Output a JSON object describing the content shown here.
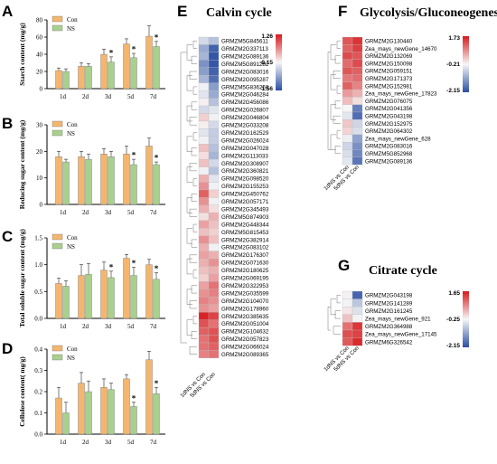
{
  "colors": {
    "con": "#f4b66f",
    "ns": "#a9d08e",
    "heat_high": "#d7191c",
    "heat_mid": "#f7f7f7",
    "heat_low": "#2b4fa5"
  },
  "legend": {
    "con": "Con",
    "ns": "NS"
  },
  "chart_data": [
    {
      "type": "bar",
      "panel": "A",
      "ylabel": "Starch content (mg/g)",
      "categories": [
        "1d",
        "2d",
        "3d",
        "5d",
        "7d"
      ],
      "ylim": [
        0,
        80
      ],
      "yticks": [
        0,
        20,
        40,
        60,
        80
      ],
      "series": [
        {
          "name": "Con",
          "values": [
            21,
            26,
            40,
            52,
            61
          ],
          "errors": [
            3,
            4,
            6,
            6,
            12
          ]
        },
        {
          "name": "NS",
          "values": [
            20,
            26,
            31,
            36,
            49
          ],
          "errors": [
            3,
            3,
            6,
            5,
            6
          ]
        }
      ],
      "significance": [
        false,
        false,
        true,
        true,
        true
      ]
    },
    {
      "type": "bar",
      "panel": "B",
      "ylabel": "Reducing sugar content (mg/g)",
      "categories": [
        "1d",
        "2d",
        "3d",
        "5d",
        "7d"
      ],
      "ylim": [
        0,
        30
      ],
      "yticks": [
        0,
        10,
        20,
        30
      ],
      "series": [
        {
          "name": "Con",
          "values": [
            18,
            18,
            19,
            19,
            22
          ],
          "errors": [
            2,
            2,
            2,
            3,
            3
          ]
        },
        {
          "name": "NS",
          "values": [
            16,
            17,
            18,
            15,
            15
          ],
          "errors": [
            1,
            2,
            2,
            2,
            1
          ]
        }
      ],
      "significance": [
        false,
        false,
        false,
        true,
        true
      ]
    },
    {
      "type": "bar",
      "panel": "C",
      "ylabel": "Total soluble sugar content (mg/g)",
      "categories": [
        "1d",
        "2d",
        "3d",
        "5d",
        "7d"
      ],
      "ylim": [
        0,
        1.5
      ],
      "yticks": [
        0.0,
        0.5,
        1.0,
        1.5
      ],
      "series": [
        {
          "name": "Con",
          "values": [
            0.65,
            0.8,
            0.9,
            1.12,
            1.0
          ],
          "errors": [
            0.1,
            0.2,
            0.15,
            0.07,
            0.1
          ]
        },
        {
          "name": "NS",
          "values": [
            0.6,
            0.82,
            0.76,
            0.8,
            0.73
          ],
          "errors": [
            0.1,
            0.2,
            0.12,
            0.15,
            0.12
          ]
        }
      ],
      "significance": [
        false,
        false,
        true,
        true,
        true
      ]
    },
    {
      "type": "bar",
      "panel": "D",
      "ylabel": "Cellulose content( mg/g)",
      "categories": [
        "1d",
        "2d",
        "3d",
        "5d",
        "7d"
      ],
      "ylim": [
        0,
        0.4
      ],
      "yticks": [
        0.0,
        0.1,
        0.2,
        0.3,
        0.4
      ],
      "series": [
        {
          "name": "Con",
          "values": [
            0.17,
            0.24,
            0.22,
            0.26,
            0.35
          ],
          "errors": [
            0.05,
            0.05,
            0.04,
            0.02,
            0.04
          ]
        },
        {
          "name": "NS",
          "values": [
            0.1,
            0.2,
            0.21,
            0.13,
            0.19
          ],
          "errors": [
            0.05,
            0.05,
            0.03,
            0.02,
            0.03
          ]
        }
      ],
      "significance": [
        false,
        false,
        false,
        true,
        true
      ]
    },
    {
      "type": "heatmap",
      "panel": "E",
      "title": "Calvin cycle",
      "columns": [
        "1dNS vs Con",
        "5dNS vs Con"
      ],
      "scale": [
        -1.56,
        -0.15,
        1.26
      ],
      "rows": [
        "GRMZM5G845611",
        "GRMZM2G337113",
        "GRMZM2G089136",
        "GRMZM5G891282",
        "GRMZM2G083016",
        "GRMZM2G095287",
        "GRMZM5G836250",
        "GRMZM2G046284",
        "GRMZM2G456086",
        "GRMZM2G026807",
        "GRMZM2G046804",
        "GRMZM2G033208",
        "GRMZM2G162529",
        "GRMZM2G026024",
        "GRMZM2G047028",
        "GRMZM2G113033",
        "GRMZM2G308907",
        "GRMZM2G360821",
        "GRMZM2G098520",
        "GRMZM2G155253",
        "GRMZM2G450762",
        "GRMZM2G057171",
        "GRMZM2G345493",
        "GRMZM5G874903",
        "GRMZM2G448344",
        "GRMZM5G815453",
        "GRMZM2G382914",
        "GRMZM2G083102",
        "GRMZM2G176307",
        "GRMZM2G071630",
        "GRMZM2G180625",
        "GRMZM2G069195",
        "GRMZM2G322953",
        "GRMZM2G035599",
        "GRMZM2G104070",
        "GRMZM2G178960",
        "GRMZM2G385635",
        "GRMZM2G051004",
        "GRMZM2G104632",
        "GRMZM2G057823",
        "GRMZM2G066024",
        "GRMZM2G089365"
      ],
      "values": [
        [
          -0.4,
          -0.6
        ],
        [
          -0.8,
          -1.4
        ],
        [
          -0.7,
          -1.5
        ],
        [
          -1.0,
          -1.5
        ],
        [
          -0.9,
          -1.4
        ],
        [
          -0.7,
          -1.3
        ],
        [
          -0.2,
          -0.9
        ],
        [
          -0.3,
          -0.8
        ],
        [
          -0.1,
          -0.6
        ],
        [
          -0.4,
          -0.3
        ],
        [
          0.1,
          -0.2
        ],
        [
          -0.1,
          -0.4
        ],
        [
          -0.3,
          -0.5
        ],
        [
          -0.2,
          -0.5
        ],
        [
          0.2,
          -0.6
        ],
        [
          0.0,
          -0.7
        ],
        [
          0.2,
          -0.4
        ],
        [
          -0.2,
          -0.6
        ],
        [
          0.3,
          -0.3
        ],
        [
          0.5,
          -0.2
        ],
        [
          0.8,
          0.1
        ],
        [
          0.5,
          -0.2
        ],
        [
          0.3,
          0.0
        ],
        [
          0.0,
          0.3
        ],
        [
          0.4,
          0.2
        ],
        [
          0.2,
          0.1
        ],
        [
          0.5,
          0.2
        ],
        [
          0.3,
          -0.2
        ],
        [
          0.4,
          0.3
        ],
        [
          0.3,
          0.5
        ],
        [
          0.2,
          0.3
        ],
        [
          0.1,
          0.4
        ],
        [
          0.4,
          0.7
        ],
        [
          0.5,
          0.6
        ],
        [
          0.6,
          0.5
        ],
        [
          0.5,
          0.4
        ],
        [
          1.2,
          1.0
        ],
        [
          0.9,
          0.7
        ],
        [
          0.8,
          0.9
        ],
        [
          0.7,
          0.9
        ],
        [
          0.7,
          0.8
        ],
        [
          0.6,
          0.7
        ]
      ]
    },
    {
      "type": "heatmap",
      "panel": "F",
      "title": "Glycolysis/Gluconeogenesis",
      "columns": [
        "1dNS vs Con",
        "5dNS vs Con"
      ],
      "scale": [
        -2.15,
        -0.21,
        1.73
      ],
      "rows": [
        "GRMZM2G130440",
        "Zea_mays_newGene_14670",
        "GRMZM2G132069",
        "GRMZM2G150098",
        "GRMZM2G059151",
        "GRMZM2G171373",
        "GRMZM2G152981",
        "Zea_mays_newGene_17823",
        "GRMZM2G076075",
        "GRMZM2G041356",
        "GRMZM2G043198",
        "GRMZM2G152975",
        "GRMZM2G064302",
        "Zea_mays_newGene_628",
        "GRMZM2G083016",
        "GRMZM5G852968",
        "GRMZM2G089136"
      ],
      "values": [
        [
          1.2,
          1.5
        ],
        [
          1.1,
          1.4
        ],
        [
          1.3,
          1.2
        ],
        [
          1.0,
          1.3
        ],
        [
          1.2,
          1.1
        ],
        [
          0.9,
          1.0
        ],
        [
          1.1,
          0.8
        ],
        [
          0.6,
          0.4
        ],
        [
          0.3,
          0.0
        ],
        [
          -0.2,
          -1.6
        ],
        [
          -0.4,
          -1.8
        ],
        [
          0.2,
          -0.6
        ],
        [
          0.1,
          -0.5
        ],
        [
          -0.3,
          -1.2
        ],
        [
          -0.6,
          -1.4
        ],
        [
          -0.5,
          -1.5
        ],
        [
          -0.4,
          -1.7
        ]
      ]
    },
    {
      "type": "heatmap",
      "panel": "G",
      "title": "Citrate cycle",
      "columns": [
        "1dNS vs Con",
        "5dNS vs Con"
      ],
      "scale": [
        -2.15,
        -0.25,
        1.65
      ],
      "rows": [
        "GRMZM2G043198",
        "GRMZM2G141289",
        "GRMZM2G161245",
        "Zea_mays_newGene_921",
        "GRMZM2G364988",
        "Zea_mays_newGene_17145",
        "GRMZM6G326542"
      ],
      "values": [
        [
          -0.2,
          -1.9
        ],
        [
          -0.3,
          -0.8
        ],
        [
          -0.1,
          -0.5
        ],
        [
          0.2,
          -0.3
        ],
        [
          0.9,
          1.4
        ],
        [
          1.2,
          1.3
        ],
        [
          1.1,
          1.5
        ]
      ]
    }
  ]
}
